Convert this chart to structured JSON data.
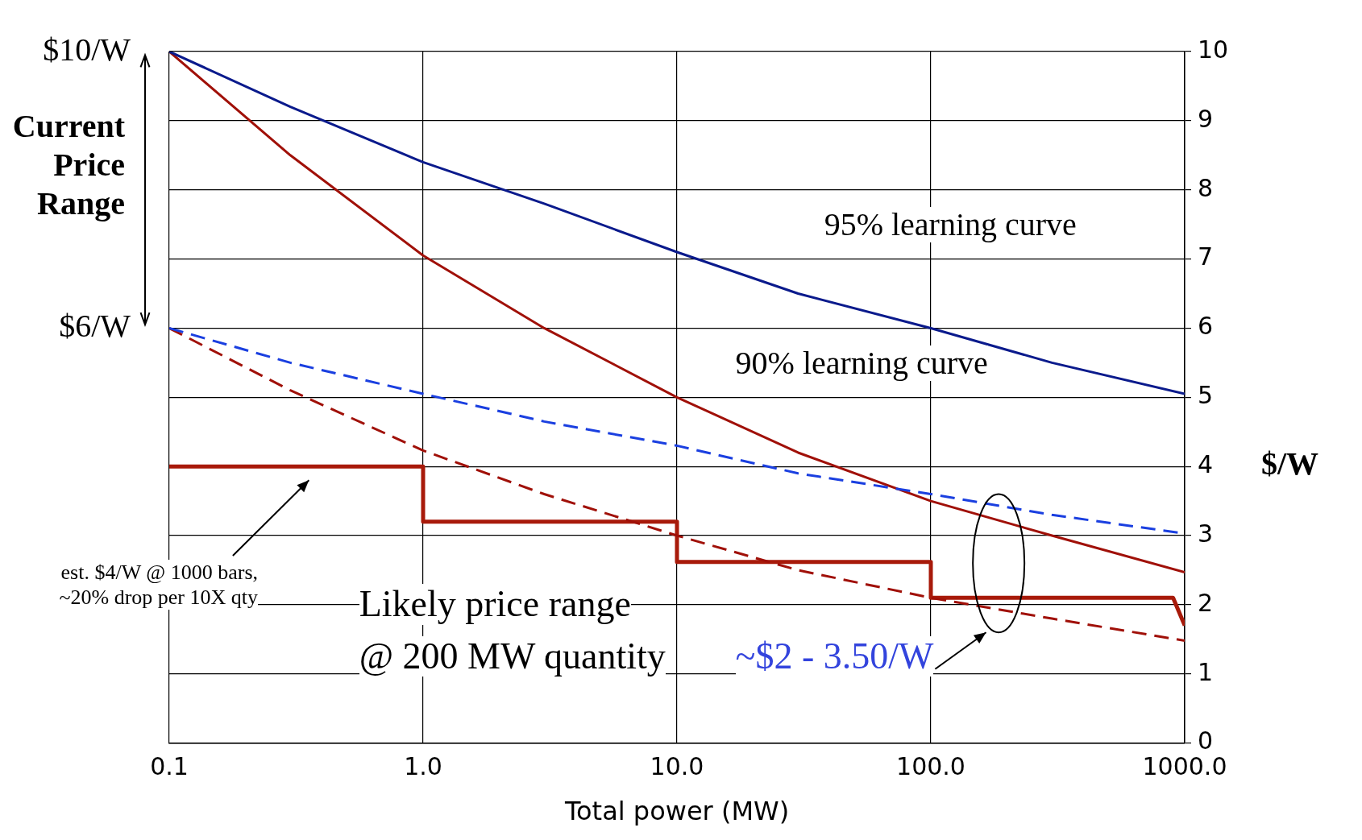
{
  "chart_data": {
    "type": "line",
    "xlabel": "Total power (MW)",
    "y2label": "$/W",
    "log": "x",
    "xlim": [
      0.1,
      1000
    ],
    "xticks": [
      {
        "value": 0.1,
        "label": "0.1"
      },
      {
        "value": 1,
        "label": "1.0"
      },
      {
        "value": 10,
        "label": "10.0"
      },
      {
        "value": 100,
        "label": "100.0"
      },
      {
        "value": 1000,
        "label": "1000.0"
      }
    ],
    "ylim": [
      0,
      10
    ],
    "yticks": [
      {
        "value": 10,
        "label": "$10/W"
      },
      {
        "value": 6,
        "label": "$6/W"
      }
    ],
    "y2lim": [
      0,
      10
    ],
    "y2ticks": [
      0,
      1,
      2,
      3,
      4,
      5,
      6,
      7,
      8,
      9,
      10
    ],
    "grid": true,
    "legend": false,
    "marker": "none",
    "series": [
      {
        "color": "#0a1a8c",
        "axis": "y2",
        "line_style": "solid",
        "x": [
          0.1,
          0.3,
          1,
          3,
          10,
          30,
          100,
          300,
          1000
        ],
        "values": [
          10,
          9.2,
          8.4,
          7.8,
          7.1,
          6.5,
          6.0,
          5.5,
          5.05
        ]
      },
      {
        "color": "#1a3fe0",
        "axis": "y2",
        "line_style": "dashed",
        "x": [
          0.1,
          0.3,
          1,
          3,
          10,
          30,
          100,
          300,
          1000
        ],
        "values": [
          6,
          5.5,
          5.05,
          4.65,
          4.3,
          3.9,
          3.6,
          3.3,
          3.03
        ]
      },
      {
        "color": "#a01008",
        "axis": "y2",
        "line_style": "solid",
        "x": [
          0.1,
          0.3,
          1,
          3,
          10,
          30,
          100,
          300,
          1000
        ],
        "values": [
          10,
          8.5,
          7.05,
          6.0,
          5.0,
          4.2,
          3.5,
          3.0,
          2.47
        ]
      },
      {
        "color": "#a01008",
        "axis": "y2",
        "line_style": "dashed",
        "x": [
          0.1,
          0.3,
          1,
          3,
          10,
          30,
          100,
          300,
          1000
        ],
        "values": [
          6,
          5.1,
          4.23,
          3.6,
          3.0,
          2.5,
          2.1,
          1.8,
          1.48
        ]
      },
      {
        "color": "#a81a0a",
        "axis": "y2",
        "line_style": "solid",
        "x": [
          0.1,
          1,
          1,
          10,
          10,
          100,
          100,
          900,
          1000
        ],
        "values": [
          4,
          4,
          3.2,
          3.2,
          2.62,
          2.62,
          2.1,
          2.1,
          1.7
        ]
      }
    ],
    "annotations": [
      "95% learning curve",
      "90% learning curve",
      "Likely price range",
      "@ 200 MW quantity",
      "~$2 - 3.50/W",
      "est. $4/W @ 1000 bars, ~20% drop per 10X qty",
      "Current Price Range"
    ]
  }
}
